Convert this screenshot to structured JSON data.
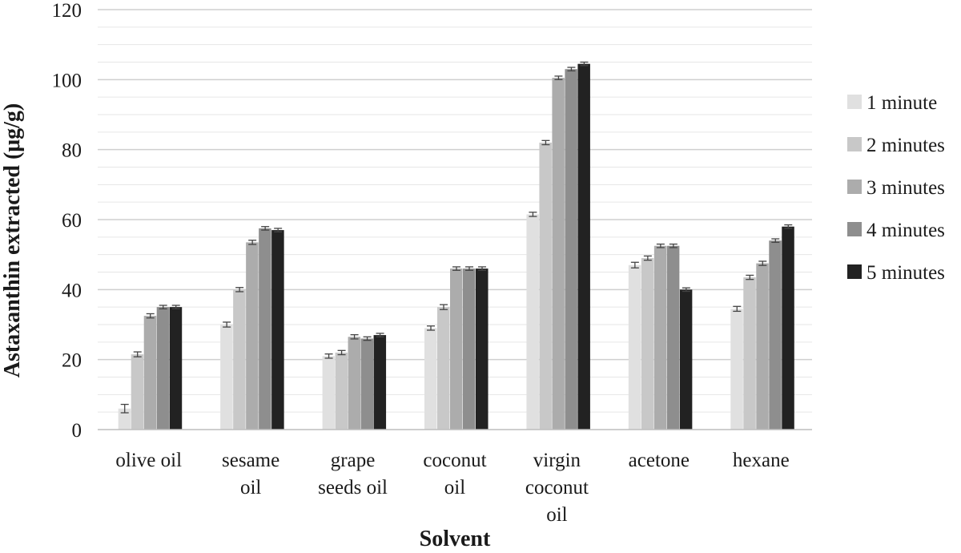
{
  "chart_data": {
    "type": "bar",
    "title": "",
    "xlabel": "Solvent",
    "ylabel": "Astaxanthin extracted (μg/g)",
    "ylim": [
      0,
      120
    ],
    "yticks": [
      0,
      20,
      40,
      60,
      80,
      100,
      120
    ],
    "grid": true,
    "legend_position": "right",
    "categories": [
      [
        "olive oil"
      ],
      [
        "sesame",
        "oil"
      ],
      [
        "grape",
        "seeds oil"
      ],
      [
        "coconut",
        "oil"
      ],
      [
        "virgin",
        "coconut",
        "oil"
      ],
      [
        "acetone"
      ],
      [
        "hexane"
      ]
    ],
    "series": [
      {
        "name": "1 minute",
        "color": "#e0e0e0",
        "values": [
          6,
          30,
          21,
          29,
          61.5,
          47,
          34.5
        ],
        "errors": [
          1.2,
          0.7,
          0.6,
          0.6,
          0.6,
          0.8,
          0.7
        ]
      },
      {
        "name": "2 minutes",
        "color": "#c8c8c8",
        "values": [
          21.5,
          40,
          22,
          35,
          82,
          49,
          43.5
        ],
        "errors": [
          0.7,
          0.6,
          0.6,
          0.7,
          0.6,
          0.6,
          0.6
        ]
      },
      {
        "name": "3 minutes",
        "color": "#acacac",
        "values": [
          32.5,
          53.5,
          26.5,
          46,
          100.5,
          52.5,
          47.5
        ],
        "errors": [
          0.6,
          0.6,
          0.6,
          0.5,
          0.5,
          0.5,
          0.6
        ]
      },
      {
        "name": "4 minutes",
        "color": "#8e8e8e",
        "values": [
          35,
          57.5,
          26,
          46,
          103,
          52.5,
          54
        ],
        "errors": [
          0.5,
          0.5,
          0.5,
          0.5,
          0.5,
          0.5,
          0.5
        ]
      },
      {
        "name": "5 minutes",
        "color": "#222222",
        "values": [
          35,
          57,
          27,
          46,
          104.5,
          40,
          58
        ],
        "errors": [
          0.5,
          0.5,
          0.5,
          0.5,
          0.5,
          0.5,
          0.5
        ]
      }
    ]
  }
}
